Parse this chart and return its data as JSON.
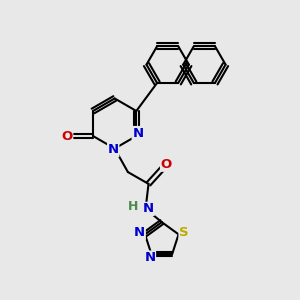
{
  "bg_color": "#e8e8e8",
  "bond_color": "#000000",
  "bond_width": 1.5,
  "atom_colors": {
    "C": "#000000",
    "N": "#0000cc",
    "O": "#cc0000",
    "S": "#bbaa00",
    "H": "#4a8a4a"
  },
  "font_size": 9.5,
  "fig_size": [
    3.0,
    3.0
  ],
  "dpi": 100
}
